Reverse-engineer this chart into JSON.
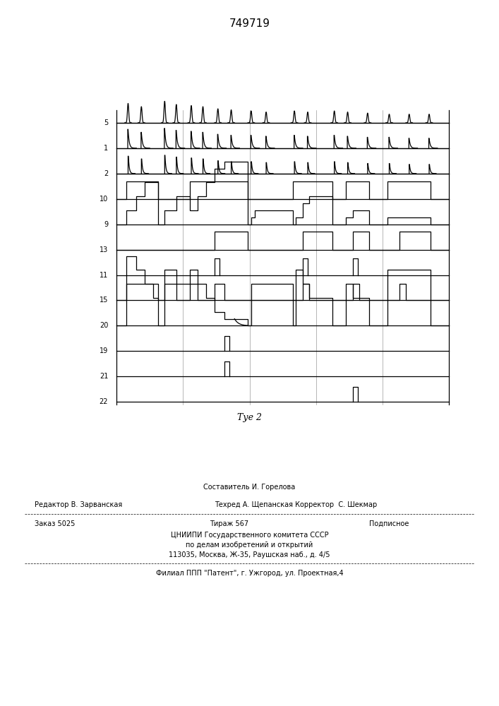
{
  "title": "749719",
  "fig_label": "Τуе 2",
  "background_color": "#ffffff",
  "line_color": "#000000",
  "channel_labels": [
    "5",
    "1",
    "2",
    "10",
    "9",
    "13",
    "11",
    "15",
    "20",
    "19",
    "21",
    "22"
  ],
  "footer_line1": "Составитель И. Горелова",
  "footer_line2a": "Редактор В. Зарванская",
  "footer_line2b": "Техред А. Щепанская Корректор  С. Шекмар",
  "footer_line3a": "Заказ 5025",
  "footer_line3b": "Тираж 567",
  "footer_line3c": "Подписное",
  "footer_line4": "ЦНИИПИ Государственного комитета СССР",
  "footer_line5": "по делам изобретений и открытий",
  "footer_line6": "113035, Москва, Ж-35, Раушская наб., д. 4/5",
  "footer_line7": "Филиал ППП \"Патент\", г. Ужгород, ул. Проектная,4"
}
